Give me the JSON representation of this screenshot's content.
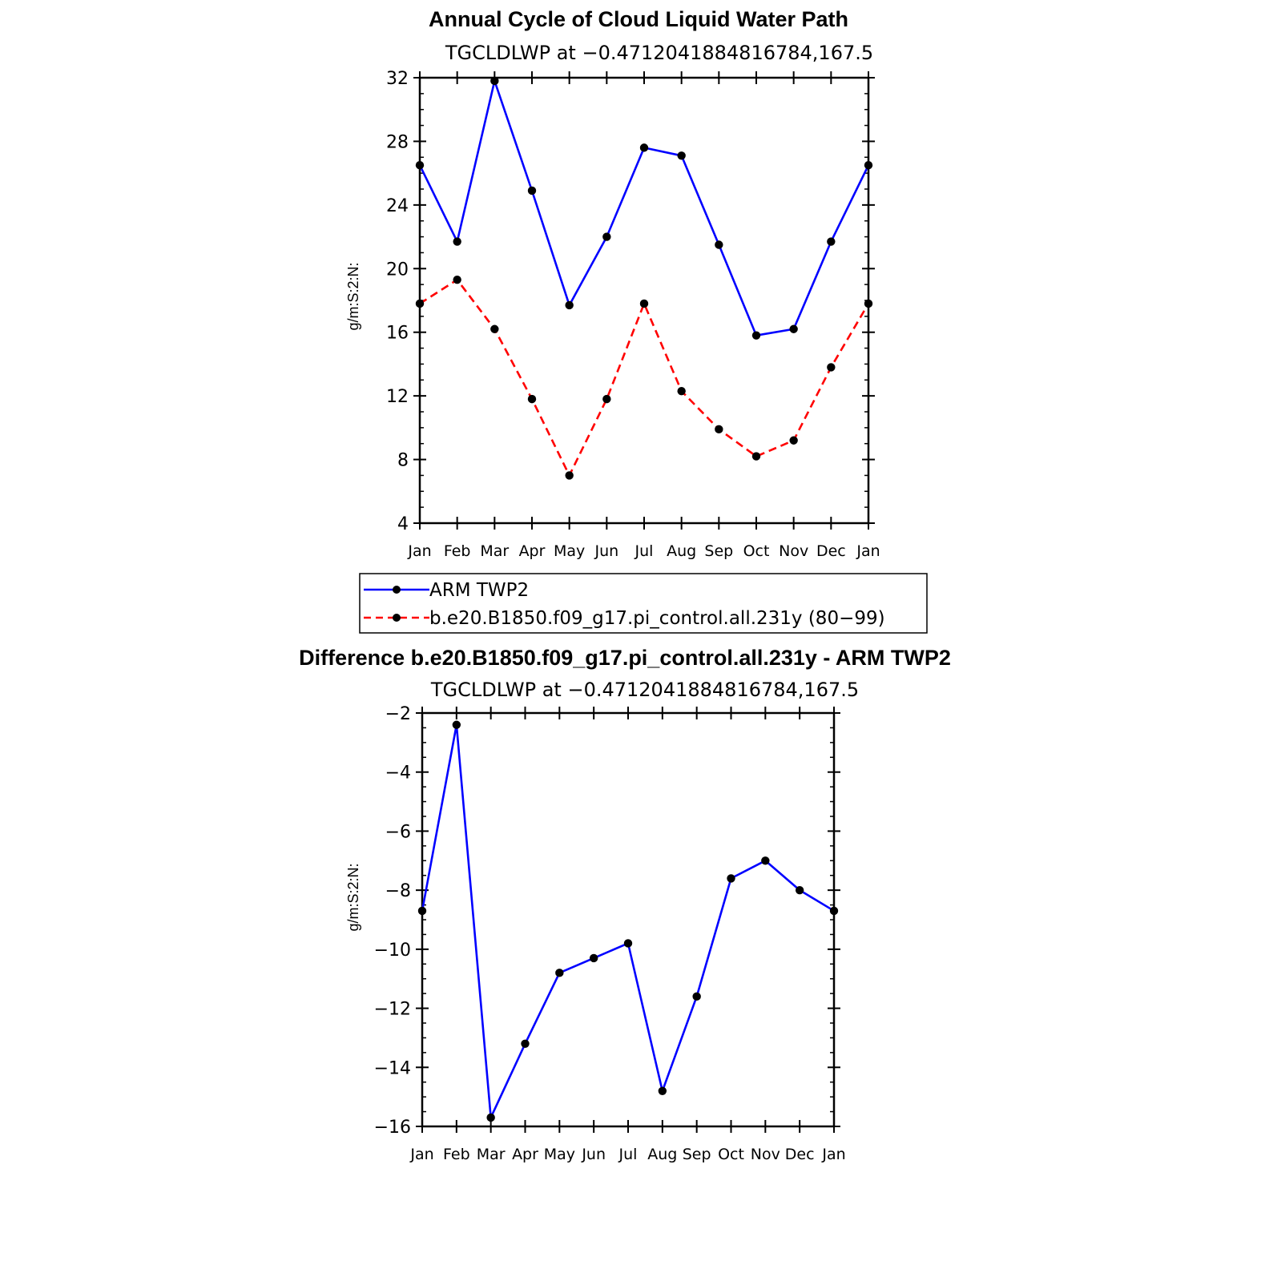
{
  "chart_data": [
    {
      "type": "line",
      "title": "Annual Cycle of Cloud Liquid Water Path",
      "subtitle": "TGCLDLWP at −0.4712041884816784,167.5",
      "ylabel": "g/m:S:2:N:",
      "xlabel": "",
      "categories": [
        "Jan",
        "Feb",
        "Mar",
        "Apr",
        "May",
        "Jun",
        "Jul",
        "Aug",
        "Sep",
        "Oct",
        "Nov",
        "Dec",
        "Jan"
      ],
      "ylim": [
        4,
        32
      ],
      "yticks": [
        4,
        8,
        12,
        16,
        20,
        24,
        28,
        32
      ],
      "series": [
        {
          "name": "ARM TWP2",
          "color": "#0000ff",
          "dash": "solid",
          "values": [
            26.5,
            21.7,
            31.8,
            24.9,
            17.7,
            22.0,
            27.6,
            27.1,
            21.5,
            15.8,
            16.2,
            21.7,
            26.5
          ]
        },
        {
          "name": "b.e20.B1850.f09_g17.pi_control.all.231y (80−99)",
          "color": "#ff0000",
          "dash": "dashed",
          "values": [
            17.8,
            19.3,
            16.2,
            11.8,
            7.0,
            11.8,
            17.8,
            12.3,
            9.9,
            8.2,
            9.2,
            13.8,
            17.8
          ]
        }
      ],
      "legend_position": "below"
    },
    {
      "type": "line",
      "title": "Difference b.e20.B1850.f09_g17.pi_control.all.231y - ARM TWP2",
      "subtitle": "TGCLDLWP at −0.4712041884816784,167.5",
      "ylabel": "g/m:S:2:N:",
      "xlabel": "",
      "categories": [
        "Jan",
        "Feb",
        "Mar",
        "Apr",
        "May",
        "Jun",
        "Jul",
        "Aug",
        "Sep",
        "Oct",
        "Nov",
        "Dec",
        "Jan"
      ],
      "ylim": [
        -16,
        -2
      ],
      "yticks": [
        -16,
        -14,
        -12,
        -10,
        -8,
        -6,
        -4,
        -2
      ],
      "series": [
        {
          "color": "#0000ff",
          "dash": "solid",
          "values": [
            -8.7,
            -2.4,
            -15.7,
            -13.2,
            -10.8,
            -10.3,
            -9.8,
            -14.8,
            -11.6,
            -7.6,
            -7.0,
            -8.0,
            -8.7
          ]
        }
      ]
    }
  ]
}
